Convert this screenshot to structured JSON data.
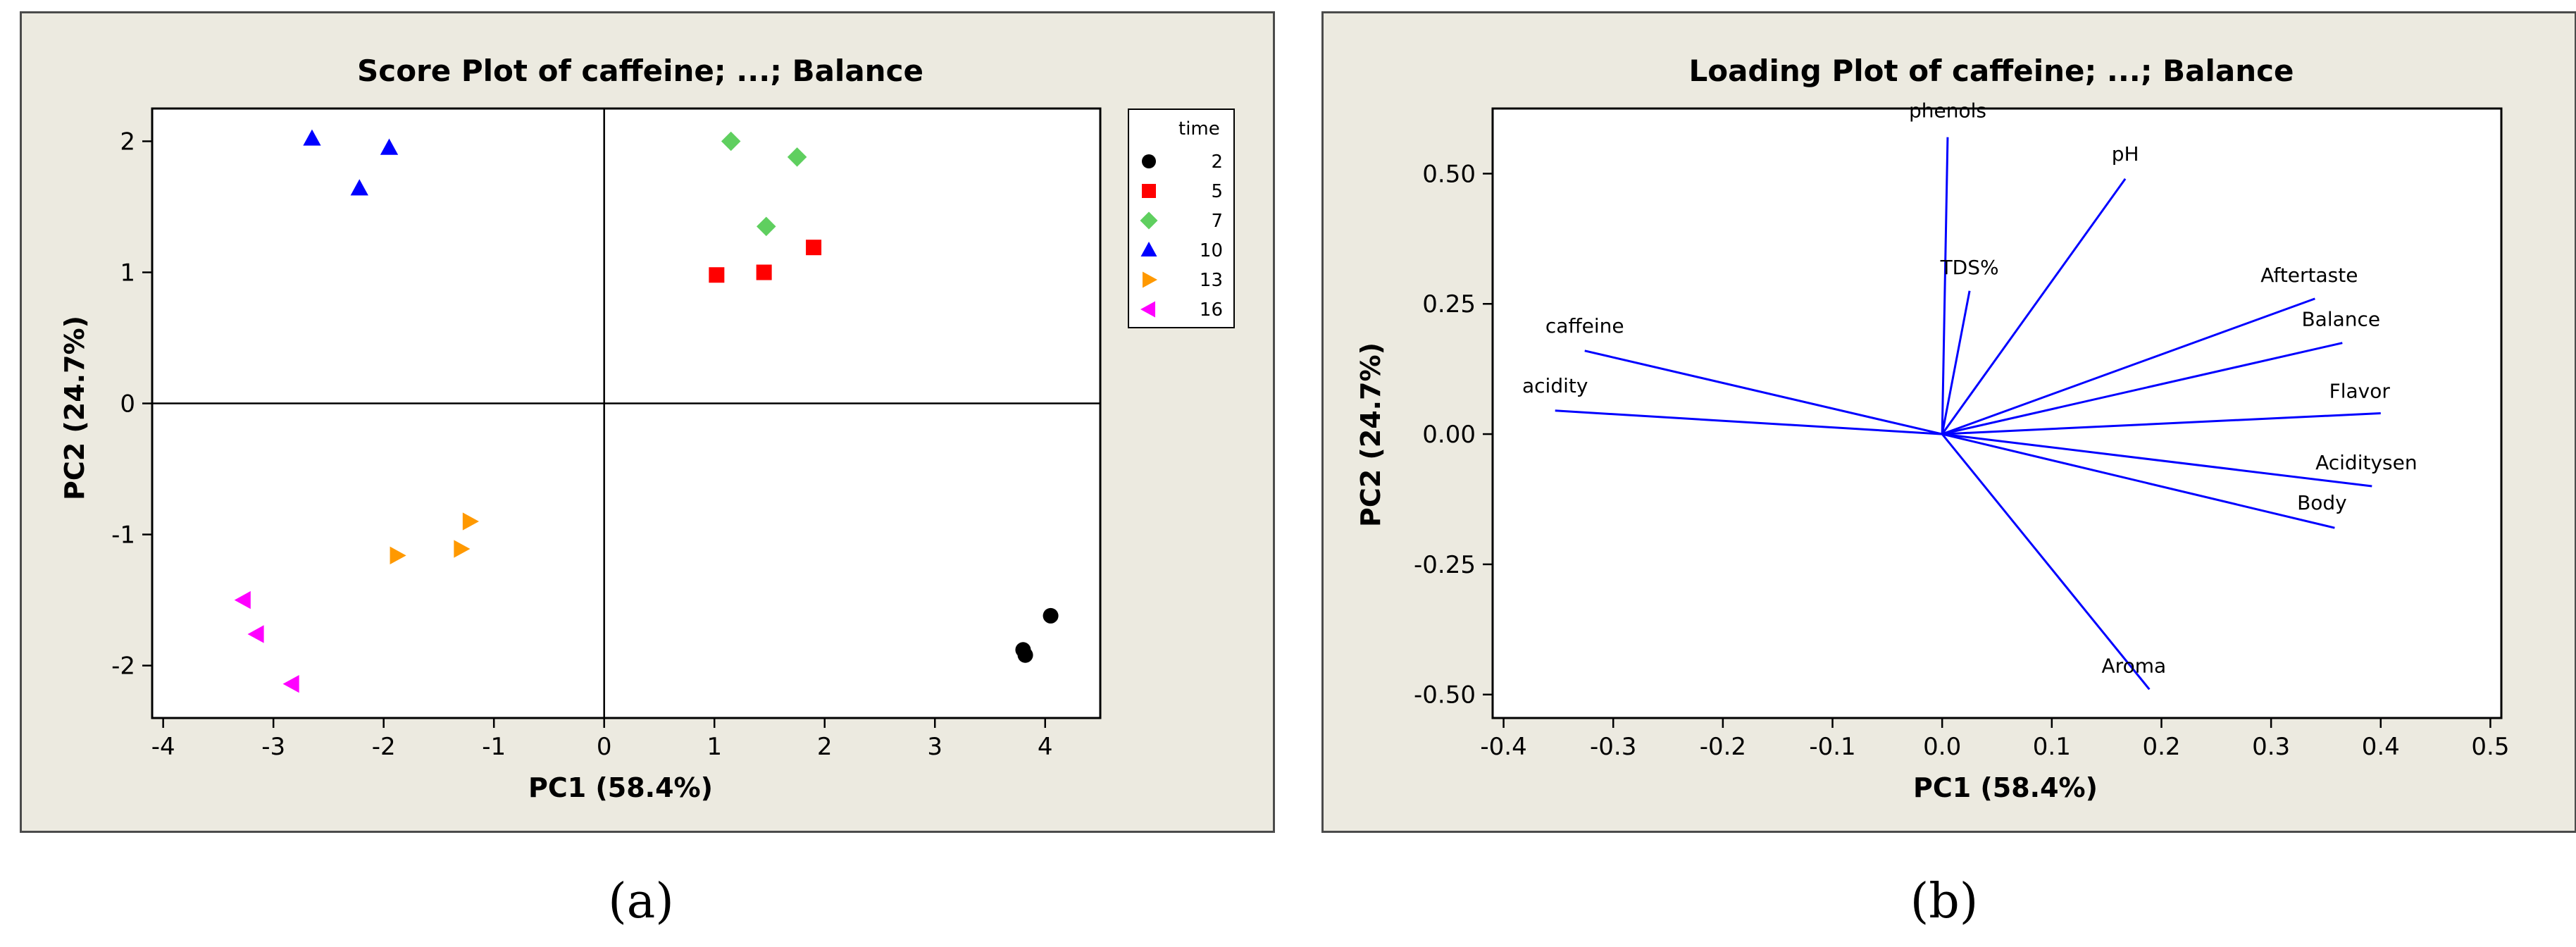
{
  "captions": {
    "a": "(a)",
    "b": "(b)"
  },
  "colors": {
    "panel_bg": "#eceae0",
    "plot_bg": "#ffffff",
    "loading_line": "#0000ff"
  },
  "chart_data": [
    {
      "type": "scatter",
      "title": "Score Plot of caffeine; ...; Balance",
      "xlabel": "PC1 (58.4%)",
      "ylabel": "PC2 (24.7%)",
      "xlim": [
        -4.1,
        4.5
      ],
      "ylim": [
        -2.4,
        2.25
      ],
      "xticks": [
        -4,
        -3,
        -2,
        -1,
        0,
        1,
        2,
        3,
        4
      ],
      "yticks": [
        -2,
        -1,
        0,
        1,
        2
      ],
      "reference_lines": {
        "x": 0,
        "y": 0
      },
      "legend": {
        "title": "time",
        "position": "top-right outside",
        "entries": [
          {
            "label": "2",
            "color": "#000000",
            "marker": "circle"
          },
          {
            "label": "5",
            "color": "#ff0000",
            "marker": "square"
          },
          {
            "label": "7",
            "color": "#5fcf5f",
            "marker": "diamond"
          },
          {
            "label": "10",
            "color": "#0000ff",
            "marker": "triangle-up"
          },
          {
            "label": "13",
            "color": "#ff9900",
            "marker": "triangle-right"
          },
          {
            "label": "16",
            "color": "#ff00ff",
            "marker": "triangle-left"
          }
        ]
      },
      "series": [
        {
          "name": "2",
          "points": [
            [
              4.05,
              -1.62
            ],
            [
              3.8,
              -1.88
            ],
            [
              3.82,
              -1.92
            ]
          ]
        },
        {
          "name": "5",
          "points": [
            [
              1.02,
              0.98
            ],
            [
              1.45,
              1.0
            ],
            [
              1.9,
              1.19
            ]
          ]
        },
        {
          "name": "7",
          "points": [
            [
              1.15,
              2.0
            ],
            [
              1.75,
              1.88
            ],
            [
              1.47,
              1.35
            ]
          ]
        },
        {
          "name": "10",
          "points": [
            [
              -2.65,
              2.02
            ],
            [
              -1.95,
              1.95
            ],
            [
              -2.22,
              1.64
            ]
          ]
        },
        {
          "name": "13",
          "points": [
            [
              -1.22,
              -0.9
            ],
            [
              -1.3,
              -1.11
            ],
            [
              -1.88,
              -1.16
            ]
          ]
        },
        {
          "name": "16",
          "points": [
            [
              -3.27,
              -1.5
            ],
            [
              -3.15,
              -1.76
            ],
            [
              -2.83,
              -2.14
            ]
          ]
        }
      ]
    },
    {
      "type": "line",
      "title": "Loading Plot of caffeine; ...; Balance",
      "xlabel": "PC1 (58.4%)",
      "ylabel": "PC2 (24.7%)",
      "xlim": [
        -0.41,
        0.51
      ],
      "ylim": [
        -0.545,
        0.625
      ],
      "xticks": [
        -0.4,
        -0.3,
        -0.2,
        -0.1,
        0.0,
        0.1,
        0.2,
        0.3,
        0.4,
        0.5
      ],
      "xtick_labels": [
        "-0.4",
        "-0.3",
        "-0.2",
        "-0.1",
        "0.0",
        "0.1",
        "0.2",
        "0.3",
        "0.4",
        "0.5"
      ],
      "yticks": [
        -0.5,
        -0.25,
        0.0,
        0.25,
        0.5
      ],
      "ytick_labels": [
        "-0.50",
        "-0.25",
        "0.00",
        "0.25",
        "0.50"
      ],
      "vectors": [
        {
          "label": "phenols",
          "x": 0.005,
          "y": 0.57
        },
        {
          "label": "pH",
          "x": 0.167,
          "y": 0.49
        },
        {
          "label": "TDS%",
          "x": 0.025,
          "y": 0.275
        },
        {
          "label": "Aftertaste",
          "x": 0.34,
          "y": 0.26
        },
        {
          "label": "Balance",
          "x": 0.365,
          "y": 0.175
        },
        {
          "label": "caffeine",
          "x": -0.326,
          "y": 0.16
        },
        {
          "label": "acidity",
          "x": -0.353,
          "y": 0.045
        },
        {
          "label": "Flavor",
          "x": 0.4,
          "y": 0.04
        },
        {
          "label": "Aciditysen",
          "x": 0.392,
          "y": -0.1
        },
        {
          "label": "Body",
          "x": 0.358,
          "y": -0.18
        },
        {
          "label": "Aroma",
          "x": 0.189,
          "y": -0.49
        }
      ]
    }
  ]
}
